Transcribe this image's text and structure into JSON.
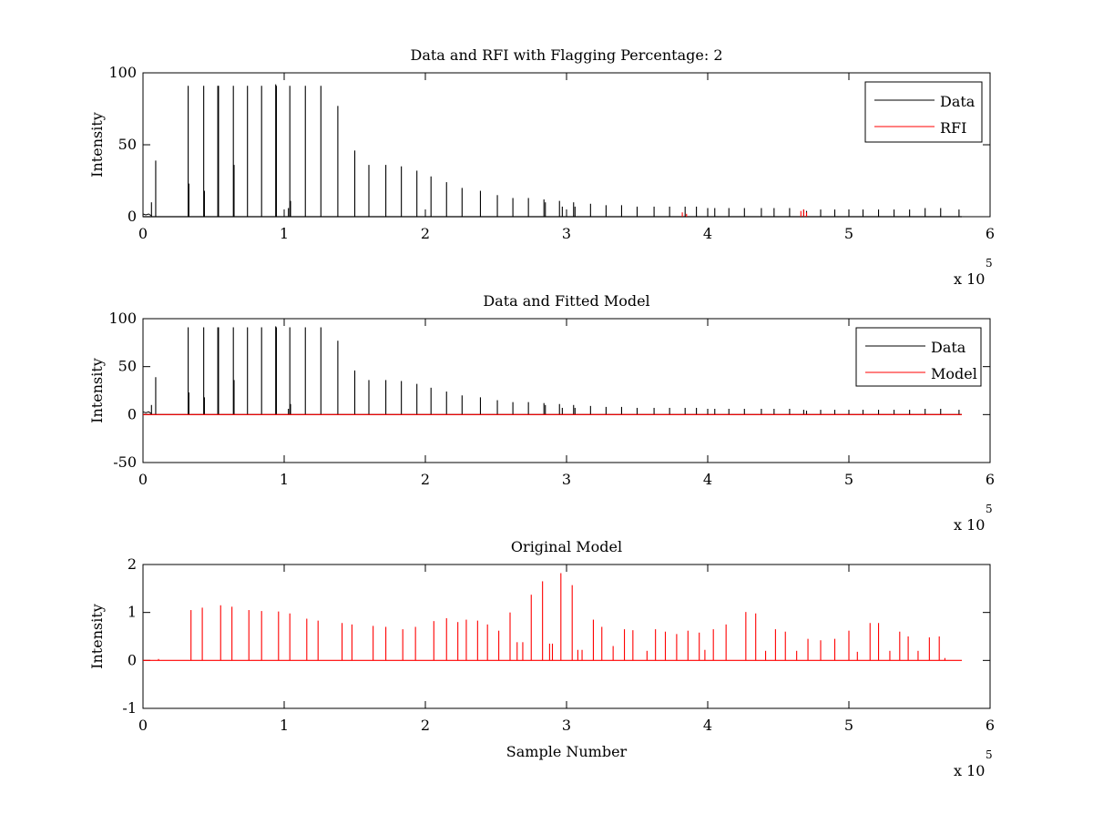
{
  "figure": {
    "background": "#ffffff"
  },
  "chart_data": [
    {
      "type": "line",
      "title": "Data and RFI with Flagging Percentage: 2",
      "xlabel": "",
      "ylabel": "Intensity",
      "xlim": [
        0,
        6
      ],
      "ylim": [
        0,
        100
      ],
      "xticks": [
        "0",
        "1",
        "2",
        "3",
        "4",
        "5",
        "6"
      ],
      "yticks": [
        "0",
        "50",
        "100"
      ],
      "x_exponent_base": "x 10",
      "x_exponent_power": "5",
      "legend_position": "top-right",
      "grid": false,
      "series": [
        {
          "name": "Data",
          "color": "#000000",
          "peaks": [
            [
              0.06,
              10
            ],
            [
              0.09,
              39
            ],
            [
              0.32,
              91
            ],
            [
              0.325,
              23
            ],
            [
              0.43,
              91
            ],
            [
              0.435,
              18
            ],
            [
              0.53,
              91
            ],
            [
              0.535,
              91
            ],
            [
              0.64,
              91
            ],
            [
              0.645,
              36
            ],
            [
              0.74,
              91
            ],
            [
              0.84,
              91
            ],
            [
              0.94,
              92
            ],
            [
              0.945,
              91
            ],
            [
              1.03,
              6
            ],
            [
              1.04,
              91
            ],
            [
              1.045,
              11
            ],
            [
              1.15,
              91
            ],
            [
              1.26,
              91
            ],
            [
              1.38,
              77
            ],
            [
              1.5,
              46
            ],
            [
              1.6,
              36
            ],
            [
              1.72,
              36
            ],
            [
              1.83,
              35
            ],
            [
              1.94,
              32
            ],
            [
              2.04,
              28
            ],
            [
              2.15,
              24
            ],
            [
              2.26,
              20
            ],
            [
              2.39,
              18
            ],
            [
              2.51,
              15
            ],
            [
              2.62,
              13
            ],
            [
              2.73,
              13
            ],
            [
              2.84,
              12
            ],
            [
              2.85,
              10
            ],
            [
              2.95,
              11
            ],
            [
              2.97,
              7
            ],
            [
              3.05,
              10
            ],
            [
              3.06,
              7
            ],
            [
              3.17,
              9
            ],
            [
              3.28,
              8
            ],
            [
              3.39,
              8
            ],
            [
              3.5,
              7
            ],
            [
              3.62,
              7
            ],
            [
              3.73,
              7
            ],
            [
              3.84,
              7
            ],
            [
              3.92,
              7
            ],
            [
              4.0,
              6
            ],
            [
              4.05,
              6
            ],
            [
              4.15,
              6
            ],
            [
              4.26,
              6
            ],
            [
              4.38,
              6
            ],
            [
              4.47,
              6
            ],
            [
              4.58,
              6
            ],
            [
              4.68,
              5
            ],
            [
              4.7,
              4
            ],
            [
              4.8,
              5
            ],
            [
              4.9,
              5
            ],
            [
              5.0,
              5
            ],
            [
              5.1,
              5
            ],
            [
              5.21,
              5
            ],
            [
              5.32,
              5
            ],
            [
              5.43,
              5
            ],
            [
              5.54,
              6
            ],
            [
              5.65,
              6
            ],
            [
              5.78,
              5
            ]
          ]
        },
        {
          "name": "RFI",
          "color": "#ff0000",
          "peaks": [
            [
              3.82,
              3
            ],
            [
              3.85,
              2
            ],
            [
              4.66,
              4
            ],
            [
              4.68,
              5
            ],
            [
              4.7,
              3
            ]
          ]
        }
      ],
      "legend": [
        "Data",
        "RFI"
      ]
    },
    {
      "type": "line",
      "title": "Data and Fitted Model",
      "xlabel": "",
      "ylabel": "Intensity",
      "xlim": [
        0,
        6
      ],
      "ylim": [
        -50,
        100
      ],
      "xticks": [
        "0",
        "1",
        "2",
        "3",
        "4",
        "5",
        "6"
      ],
      "yticks": [
        "-50",
        "0",
        "50",
        "100"
      ],
      "x_exponent_base": "x 10",
      "x_exponent_power": "5",
      "legend_position": "top-right",
      "grid": false,
      "series": [
        {
          "name": "Data",
          "color": "#000000",
          "peaks": [
            [
              0.06,
              10
            ],
            [
              0.09,
              39
            ],
            [
              0.32,
              91
            ],
            [
              0.325,
              23
            ],
            [
              0.43,
              91
            ],
            [
              0.435,
              18
            ],
            [
              0.53,
              91
            ],
            [
              0.535,
              91
            ],
            [
              0.64,
              91
            ],
            [
              0.645,
              36
            ],
            [
              0.74,
              91
            ],
            [
              0.84,
              91
            ],
            [
              0.94,
              92
            ],
            [
              0.945,
              91
            ],
            [
              1.03,
              6
            ],
            [
              1.04,
              91
            ],
            [
              1.045,
              11
            ],
            [
              1.15,
              91
            ],
            [
              1.26,
              91
            ],
            [
              1.38,
              77
            ],
            [
              1.5,
              46
            ],
            [
              1.6,
              36
            ],
            [
              1.72,
              36
            ],
            [
              1.83,
              35
            ],
            [
              1.94,
              32
            ],
            [
              2.04,
              28
            ],
            [
              2.15,
              24
            ],
            [
              2.26,
              20
            ],
            [
              2.39,
              18
            ],
            [
              2.51,
              15
            ],
            [
              2.62,
              13
            ],
            [
              2.73,
              13
            ],
            [
              2.84,
              12
            ],
            [
              2.85,
              10
            ],
            [
              2.95,
              11
            ],
            [
              2.97,
              7
            ],
            [
              3.05,
              10
            ],
            [
              3.06,
              7
            ],
            [
              3.17,
              9
            ],
            [
              3.28,
              8
            ],
            [
              3.39,
              8
            ],
            [
              3.5,
              7
            ],
            [
              3.62,
              7
            ],
            [
              3.73,
              7
            ],
            [
              3.84,
              7
            ],
            [
              3.92,
              7
            ],
            [
              4.0,
              6
            ],
            [
              4.05,
              6
            ],
            [
              4.15,
              6
            ],
            [
              4.26,
              6
            ],
            [
              4.38,
              6
            ],
            [
              4.47,
              6
            ],
            [
              4.58,
              6
            ],
            [
              4.68,
              5
            ],
            [
              4.7,
              4
            ],
            [
              4.8,
              5
            ],
            [
              4.9,
              5
            ],
            [
              5.0,
              5
            ],
            [
              5.1,
              5
            ],
            [
              5.21,
              5
            ],
            [
              5.32,
              5
            ],
            [
              5.43,
              5
            ],
            [
              5.54,
              6
            ],
            [
              5.65,
              6
            ],
            [
              5.78,
              5
            ]
          ]
        },
        {
          "name": "Model",
          "color": "#ff0000",
          "peaks": [
            [
              0,
              0
            ],
            [
              5.8,
              0
            ]
          ]
        }
      ],
      "legend": [
        "Data",
        "Model"
      ]
    },
    {
      "type": "line",
      "title": "Original Model",
      "xlabel": "Sample Number",
      "ylabel": "Intensity",
      "xlim": [
        0,
        6
      ],
      "ylim": [
        -1,
        2
      ],
      "xticks": [
        "0",
        "1",
        "2",
        "3",
        "4",
        "5",
        "6"
      ],
      "yticks": [
        "-1",
        "0",
        "1",
        "2"
      ],
      "x_exponent_base": "x 10",
      "x_exponent_power": "5",
      "legend_position": "none",
      "grid": false,
      "series": [
        {
          "color": "#ff0000",
          "peaks": [
            [
              0.11,
              0.03
            ],
            [
              0.34,
              1.05
            ],
            [
              0.42,
              1.1
            ],
            [
              0.55,
              1.15
            ],
            [
              0.63,
              1.12
            ],
            [
              0.75,
              1.05
            ],
            [
              0.84,
              1.03
            ],
            [
              0.96,
              1.02
            ],
            [
              1.04,
              0.98
            ],
            [
              1.16,
              0.87
            ],
            [
              1.24,
              0.83
            ],
            [
              1.41,
              0.78
            ],
            [
              1.48,
              0.75
            ],
            [
              1.63,
              0.72
            ],
            [
              1.72,
              0.7
            ],
            [
              1.84,
              0.65
            ],
            [
              1.93,
              0.7
            ],
            [
              2.06,
              0.82
            ],
            [
              2.15,
              0.88
            ],
            [
              2.23,
              0.8
            ],
            [
              2.29,
              0.85
            ],
            [
              2.37,
              0.83
            ],
            [
              2.44,
              0.75
            ],
            [
              2.52,
              0.62
            ],
            [
              2.6,
              1.0
            ],
            [
              2.65,
              0.38
            ],
            [
              2.69,
              0.38
            ],
            [
              2.75,
              1.37
            ],
            [
              2.83,
              1.65
            ],
            [
              2.88,
              0.35
            ],
            [
              2.9,
              0.35
            ],
            [
              2.96,
              1.82
            ],
            [
              3.04,
              1.57
            ],
            [
              3.08,
              0.22
            ],
            [
              3.11,
              0.22
            ],
            [
              3.19,
              0.85
            ],
            [
              3.25,
              0.7
            ],
            [
              3.33,
              0.3
            ],
            [
              3.41,
              0.65
            ],
            [
              3.47,
              0.63
            ],
            [
              3.57,
              0.2
            ],
            [
              3.63,
              0.65
            ],
            [
              3.7,
              0.6
            ],
            [
              3.78,
              0.55
            ],
            [
              3.86,
              0.62
            ],
            [
              3.94,
              0.58
            ],
            [
              3.98,
              0.22
            ],
            [
              4.04,
              0.65
            ],
            [
              4.13,
              0.75
            ],
            [
              4.27,
              1.01
            ],
            [
              4.34,
              0.98
            ],
            [
              4.41,
              0.2
            ],
            [
              4.48,
              0.65
            ],
            [
              4.55,
              0.6
            ],
            [
              4.63,
              0.2
            ],
            [
              4.71,
              0.45
            ],
            [
              4.8,
              0.42
            ],
            [
              4.9,
              0.45
            ],
            [
              5.0,
              0.62
            ],
            [
              5.06,
              0.18
            ],
            [
              5.15,
              0.78
            ],
            [
              5.21,
              0.78
            ],
            [
              5.29,
              0.2
            ],
            [
              5.36,
              0.6
            ],
            [
              5.42,
              0.5
            ],
            [
              5.49,
              0.2
            ],
            [
              5.57,
              0.48
            ],
            [
              5.64,
              0.5
            ],
            [
              5.68,
              0.05
            ]
          ]
        }
      ]
    }
  ]
}
